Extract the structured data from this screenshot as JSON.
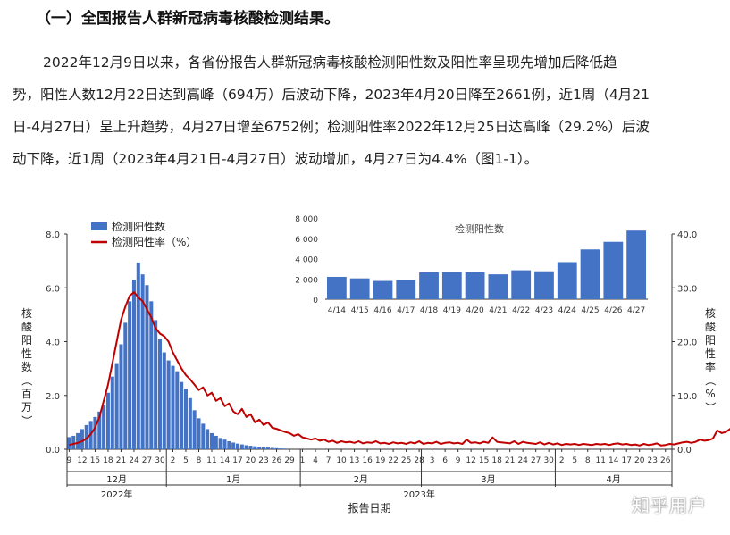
{
  "heading": "（一）全国报告人群新冠病毒核酸检测结果。",
  "paragraph_lines": [
    "2022年12月9日以来，各省份报告人群新冠病毒核酸检测阳性数及阳性率呈现先增加后降低趋",
    "势，阳性人数12月22日达到高峰（694万）后波动下降，2023年4月20日降至2661例，近1周（4月21",
    "日-4月27日）呈上升趋势，4月27日增至6752例；检测阳性率2022年12月25日达高峰（29.2%）后波",
    "动下降，近1周（2023年4月21日-4月27日）波动增加，4月27日为4.4%（图1-1）。"
  ],
  "watermark": "知乎用户",
  "colors": {
    "bar": "#4472c4",
    "line": "#c00000",
    "axis": "#555555"
  },
  "chart_data": [
    {
      "type": "bar+line",
      "xlabel": "报告日期",
      "ylabel_left": "核酸阳性数（百万）",
      "ylabel_right": "核酸阳性率（%）",
      "ylim_left": [
        0,
        8
      ],
      "ylim_right": [
        0,
        40
      ],
      "left_ticks": [
        "0.0",
        "2.0",
        "4.0",
        "6.0",
        "8.0"
      ],
      "right_ticks": [
        "0.0",
        "10.0",
        "20.0",
        "30.0",
        "40.0"
      ],
      "x_tick_labels": [
        "9",
        "12",
        "15",
        "18",
        "21",
        "24",
        "27",
        "30",
        "2",
        "5",
        "8",
        "11",
        "14",
        "17",
        "20",
        "23",
        "26",
        "29",
        "1",
        "4",
        "7",
        "10",
        "13",
        "16",
        "19",
        "22",
        "25",
        "28",
        "3",
        "6",
        "9",
        "12",
        "15",
        "18",
        "21",
        "24",
        "27",
        "30",
        "2",
        "5",
        "8",
        "11",
        "14",
        "17",
        "20",
        "23",
        "26"
      ],
      "month_labels": [
        "12月",
        "1月",
        "2月",
        "3月",
        "4月"
      ],
      "year_labels": [
        "2022年",
        "2023年"
      ],
      "legend": [
        "检测阳性数",
        "检测阳性率（%）"
      ],
      "legend_position": "top-left",
      "start_date": "2022-12-09",
      "series": [
        {
          "name": "检测阳性数",
          "kind": "bar",
          "values": [
            0.45,
            0.5,
            0.6,
            0.75,
            0.9,
            1.05,
            1.2,
            1.4,
            1.65,
            2.1,
            2.7,
            3.2,
            3.9,
            4.7,
            5.5,
            6.3,
            6.94,
            6.5,
            6.1,
            5.5,
            4.8,
            4.1,
            3.6,
            3.3,
            3.1,
            2.9,
            2.5,
            2.25,
            1.9,
            1.45,
            1.15,
            0.95,
            0.75,
            0.6,
            0.5,
            0.42,
            0.36,
            0.3,
            0.25,
            0.21,
            0.18,
            0.15,
            0.13,
            0.11,
            0.09,
            0.08,
            0.065,
            0.05,
            0.04,
            0.03,
            0.025
          ]
        },
        {
          "name": "检测阳性率（%）",
          "kind": "line",
          "values": [
            0.8,
            1.0,
            1.2,
            1.5,
            2.0,
            2.8,
            4.0,
            6.0,
            9.0,
            12.0,
            16.0,
            20.0,
            24.0,
            26.5,
            28.5,
            29.2,
            28.2,
            27.5,
            26.0,
            24.5,
            22.5,
            21.5,
            21.0,
            20.0,
            18.0,
            16.5,
            15.0,
            13.8,
            13.0,
            12.0,
            11.0,
            11.5,
            10.0,
            10.5,
            9.0,
            9.5,
            8.0,
            8.5,
            7.0,
            6.5,
            7.5,
            6.0,
            6.5,
            5.0,
            5.5,
            4.5,
            5.0,
            4.0,
            3.8,
            3.5,
            3.2,
            3.0,
            2.5,
            2.8,
            2.2,
            2.0,
            1.8,
            2.0,
            1.6,
            1.8,
            1.4,
            1.6,
            1.2,
            1.5,
            1.3,
            1.4,
            1.2,
            1.5,
            1.1,
            1.3,
            1.2,
            1.5,
            1.1,
            1.2,
            1.0,
            1.3,
            1.1,
            1.2,
            1.0,
            1.3,
            1.1,
            1.5,
            1.0,
            1.2,
            1.1,
            1.4,
            1.0,
            1.2,
            1.3,
            1.1,
            1.2,
            1.0,
            1.8,
            1.2,
            1.3,
            1.1,
            1.4,
            1.2,
            2.2,
            1.4,
            1.3,
            1.2,
            1.1,
            1.5,
            1.0,
            1.4,
            1.2,
            1.1,
            1.0,
            1.3,
            0.9,
            1.2,
            0.9,
            1.1,
            0.8,
            1.0,
            0.9,
            1.0,
            0.8,
            1.0,
            0.9,
            0.8,
            1.0,
            0.9,
            1.0,
            0.8,
            1.0,
            1.1,
            0.9,
            1.0,
            0.8,
            0.9,
            0.7,
            1.0,
            0.8,
            0.9,
            1.1,
            0.7,
            0.8,
            1.0,
            0.9,
            1.1,
            1.3,
            1.4,
            1.2,
            1.4,
            1.8,
            1.6,
            1.7,
            2.0,
            3.5,
            3.0,
            3.2,
            3.8,
            4.4
          ]
        }
      ]
    },
    {
      "type": "bar",
      "title": "检测阳性数",
      "categories": [
        "4/14",
        "4/15",
        "4/16",
        "4/17",
        "4/18",
        "4/19",
        "4/20",
        "4/21",
        "4/22",
        "4/23",
        "4/24",
        "4/25",
        "4/26",
        "4/27"
      ],
      "values": [
        2200,
        2050,
        1800,
        1900,
        2650,
        2700,
        2661,
        2450,
        2850,
        2750,
        3650,
        4900,
        5650,
        6752
      ],
      "ylim": [
        0,
        8000
      ],
      "y_ticks": [
        "0",
        "2 000",
        "4 000",
        "6 000",
        "8 000"
      ]
    }
  ]
}
